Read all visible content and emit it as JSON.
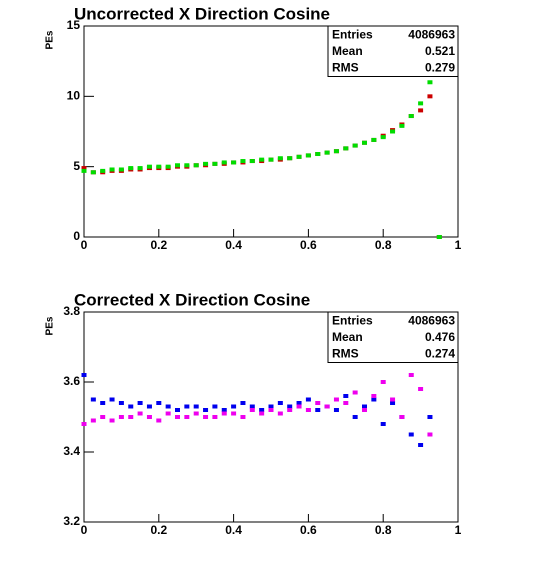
{
  "chart_data": [
    {
      "type": "scatter",
      "title": "Uncorrected X Direction Cosine",
      "y_label": "PEs",
      "x": [
        0,
        0.025,
        0.05,
        0.075,
        0.1,
        0.125,
        0.15,
        0.175,
        0.2,
        0.225,
        0.25,
        0.275,
        0.3,
        0.325,
        0.35,
        0.375,
        0.4,
        0.425,
        0.45,
        0.475,
        0.5,
        0.525,
        0.55,
        0.575,
        0.6,
        0.625,
        0.65,
        0.675,
        0.7,
        0.725,
        0.75,
        0.775,
        0.8,
        0.825,
        0.85,
        0.875,
        0.9,
        0.925,
        0.95
      ],
      "series": [
        {
          "name": "red",
          "color": "#cc0000",
          "values": [
            4.9,
            4.6,
            4.6,
            4.7,
            4.7,
            4.8,
            4.8,
            4.9,
            4.9,
            4.9,
            5.0,
            5.0,
            5.1,
            5.1,
            5.2,
            5.2,
            5.3,
            5.3,
            5.4,
            5.4,
            5.5,
            5.5,
            5.6,
            5.7,
            5.8,
            5.9,
            6.0,
            6.1,
            6.3,
            6.5,
            6.7,
            6.9,
            7.2,
            7.6,
            8.0,
            8.6,
            9.0,
            10,
            0
          ]
        },
        {
          "name": "green",
          "color": "#00dd00",
          "values": [
            4.7,
            4.6,
            4.7,
            4.8,
            4.8,
            4.9,
            4.9,
            5.0,
            5.0,
            5.0,
            5.1,
            5.1,
            5.1,
            5.2,
            5.2,
            5.3,
            5.3,
            5.4,
            5.4,
            5.5,
            5.5,
            5.6,
            5.6,
            5.7,
            5.8,
            5.9,
            6.0,
            6.1,
            6.3,
            6.5,
            6.7,
            6.9,
            7.1,
            7.5,
            7.9,
            8.6,
            9.5,
            11,
            0
          ]
        }
      ],
      "xlim": [
        0,
        1
      ],
      "xticks": [
        0,
        0.2,
        0.4,
        0.6,
        0.8,
        1
      ],
      "ylim": [
        0,
        15
      ],
      "yticks": [
        0,
        5,
        10,
        15
      ],
      "stats": [
        {
          "label": "Entries",
          "value": 4086963
        },
        {
          "label": "Mean",
          "value": 0.521
        },
        {
          "label": "RMS",
          "value": 0.279
        }
      ]
    },
    {
      "type": "scatter",
      "title": "Corrected X Direction Cosine",
      "y_label": "PEs",
      "x": [
        0,
        0.025,
        0.05,
        0.075,
        0.1,
        0.125,
        0.15,
        0.175,
        0.2,
        0.225,
        0.25,
        0.275,
        0.3,
        0.325,
        0.35,
        0.375,
        0.4,
        0.425,
        0.45,
        0.475,
        0.5,
        0.525,
        0.55,
        0.575,
        0.6,
        0.625,
        0.65,
        0.675,
        0.7,
        0.725,
        0.75,
        0.775,
        0.8,
        0.825,
        0.85,
        0.875,
        0.9,
        0.925,
        0.95
      ],
      "series": [
        {
          "name": "blue",
          "color": "#0000ee",
          "values": [
            3.62,
            3.55,
            3.54,
            3.55,
            3.54,
            3.53,
            3.54,
            3.53,
            3.54,
            3.53,
            3.52,
            3.53,
            3.53,
            3.52,
            3.53,
            3.52,
            3.53,
            3.54,
            3.53,
            3.52,
            3.53,
            3.54,
            3.53,
            3.54,
            3.55,
            3.52,
            3.53,
            3.52,
            3.56,
            3.5,
            3.53,
            3.55,
            3.48,
            3.54,
            3.5,
            3.45,
            3.42,
            3.5,
            null
          ]
        },
        {
          "name": "magenta",
          "color": "#ee00ee",
          "values": [
            3.48,
            3.49,
            3.5,
            3.49,
            3.5,
            3.5,
            3.51,
            3.5,
            3.49,
            3.51,
            3.5,
            3.5,
            3.51,
            3.5,
            3.5,
            3.51,
            3.51,
            3.5,
            3.52,
            3.51,
            3.52,
            3.51,
            3.52,
            3.53,
            3.52,
            3.54,
            3.53,
            3.55,
            3.54,
            3.57,
            3.52,
            3.56,
            3.6,
            3.55,
            3.5,
            3.62,
            3.58,
            3.45,
            null
          ]
        }
      ],
      "xlim": [
        0,
        1
      ],
      "xticks": [
        0,
        0.2,
        0.4,
        0.6,
        0.8,
        1
      ],
      "ylim": [
        3.2,
        3.8
      ],
      "yticks": [
        3.2,
        3.4,
        3.6,
        3.8
      ],
      "stats": [
        {
          "label": "Entries",
          "value": 4086963
        },
        {
          "label": "Mean",
          "value": 0.476
        },
        {
          "label": "RMS",
          "value": 0.274
        }
      ]
    }
  ]
}
